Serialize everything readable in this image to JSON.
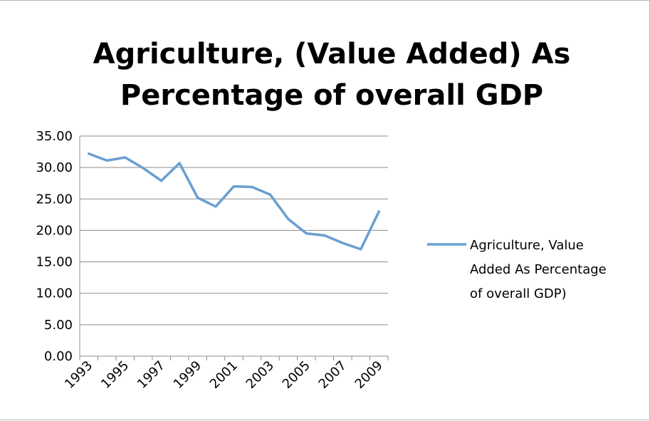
{
  "chart_data": {
    "type": "line",
    "title_lines": [
      "Agriculture, (Value Added) As",
      "Percentage of overall GDP"
    ],
    "xlabel": "",
    "ylabel": "",
    "x": [
      1993,
      1994,
      1995,
      1996,
      1997,
      1998,
      1999,
      2000,
      2001,
      2002,
      2003,
      2004,
      2005,
      2006,
      2007,
      2008,
      2009
    ],
    "x_tick_labels": [
      "1993",
      "1995",
      "1997",
      "1999",
      "2001",
      "2003",
      "2005",
      "2007",
      "2009"
    ],
    "y_tick_labels": [
      "35.00",
      "30.00",
      "25.00",
      "20.00",
      "15.00",
      "10.00",
      "5.00",
      "0.00"
    ],
    "ylim": [
      0,
      35
    ],
    "ytick_step": 5,
    "grid": true,
    "legend_position": "right",
    "series": [
      {
        "name_lines": [
          "Agriculture, Value",
          "Added As Percentage",
          "of overall GDP)"
        ],
        "color": "#6a9fd0",
        "values": [
          32.2,
          31.1,
          31.6,
          29.9,
          27.9,
          30.7,
          25.2,
          23.8,
          27.0,
          26.9,
          25.7,
          21.8,
          19.5,
          19.2,
          18.0,
          17.0,
          23.0
        ]
      }
    ]
  }
}
